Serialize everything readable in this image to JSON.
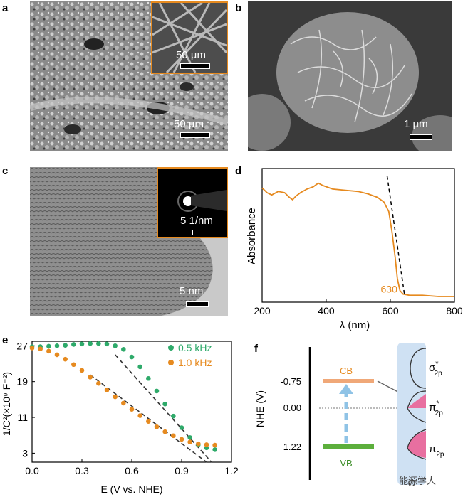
{
  "panels": {
    "a": {
      "label": "a",
      "scale": "50 µm",
      "inset_scale": "50 µm"
    },
    "b": {
      "label": "b",
      "scale": "1 µm"
    },
    "c": {
      "label": "c",
      "scale": "5 nm",
      "inset_scale": "5 1/nm"
    },
    "d": {
      "label": "d",
      "annotation": "630"
    },
    "e": {
      "label": "e"
    },
    "f": {
      "label": "f"
    }
  },
  "colors": {
    "orange": "#E68A1F",
    "green": "#2EAA6A",
    "cb": "#F0A878",
    "vb": "#5CAF3C",
    "arrow": "#8FC3E6",
    "band_bg": "#CFE1F3",
    "pink": "#E86FA0"
  },
  "chart_data": [
    {
      "type": "line",
      "panel": "d",
      "xlabel": "λ (nm)",
      "ylabel": "Absorbance",
      "xlim": [
        200,
        800
      ],
      "xticks": [
        "200",
        "400",
        "600",
        "800"
      ],
      "series": [
        {
          "x": [
            200,
            215,
            230,
            250,
            270,
            285,
            295,
            305,
            320,
            340,
            360,
            375,
            390,
            420,
            460,
            500,
            530,
            560,
            580,
            595,
            605,
            615,
            622,
            630,
            640,
            660,
            700,
            750,
            800
          ],
          "y": [
            0.92,
            0.88,
            0.86,
            0.89,
            0.88,
            0.84,
            0.82,
            0.85,
            0.88,
            0.91,
            0.93,
            0.96,
            0.94,
            0.91,
            0.9,
            0.89,
            0.87,
            0.84,
            0.8,
            0.72,
            0.55,
            0.33,
            0.15,
            0.05,
            0.02,
            0.01,
            0.01,
            0.0,
            0.0
          ]
        }
      ],
      "fit_line": {
        "x": [
          590,
          645
        ],
        "y": [
          1.02,
          0.0
        ]
      },
      "annotation": "630"
    },
    {
      "type": "scatter",
      "panel": "e",
      "xlabel": "E (V vs. NHE)",
      "ylabel": "1/C²(×10⁹ F⁻²)",
      "xlim": [
        0.0,
        1.2
      ],
      "ylim": [
        1,
        28
      ],
      "xticks": [
        "0.0",
        "0.3",
        "0.6",
        "0.9",
        "1.2"
      ],
      "yticks": [
        "3",
        "11",
        "19",
        "27"
      ],
      "series": [
        {
          "name": "0.5 kHz",
          "color": "#2EAA6A",
          "x": [
            0.0,
            0.05,
            0.1,
            0.15,
            0.2,
            0.25,
            0.3,
            0.35,
            0.4,
            0.45,
            0.5,
            0.55,
            0.6,
            0.65,
            0.7,
            0.75,
            0.8,
            0.85,
            0.9,
            0.95,
            1.0,
            1.05,
            1.1
          ],
          "y": [
            26.8,
            26.8,
            26.9,
            27.0,
            27.1,
            27.3,
            27.4,
            27.5,
            27.5,
            27.4,
            27.0,
            26.2,
            24.5,
            22.3,
            19.7,
            16.9,
            14.0,
            11.3,
            8.7,
            6.5,
            4.9,
            4.2,
            3.8
          ]
        },
        {
          "name": "1.0 kHz",
          "color": "#E68A1F",
          "x": [
            0.0,
            0.05,
            0.1,
            0.15,
            0.2,
            0.25,
            0.3,
            0.35,
            0.4,
            0.45,
            0.5,
            0.55,
            0.6,
            0.65,
            0.7,
            0.75,
            0.8,
            0.85,
            0.9,
            0.95,
            1.0,
            1.05,
            1.1
          ],
          "y": [
            26.5,
            26.3,
            25.8,
            25.0,
            24.0,
            22.8,
            21.5,
            20.0,
            18.6,
            17.1,
            15.6,
            14.2,
            12.8,
            11.4,
            10.1,
            8.9,
            7.8,
            6.9,
            6.1,
            5.5,
            5.1,
            4.9,
            4.8
          ]
        }
      ],
      "fit_lines": [
        {
          "x": [
            0.5,
            1.08
          ],
          "y": [
            25.0,
            1.0
          ]
        },
        {
          "x": [
            0.35,
            1.05
          ],
          "y": [
            20.5,
            1.0
          ]
        }
      ]
    }
  ],
  "panel_f": {
    "axis_label": "NHE (V)",
    "ticks": [
      "-0.75",
      "0.00",
      "1.22"
    ],
    "cb": "CB",
    "vb": "VB",
    "orbitals": [
      "σ*2p",
      "π*2p",
      "π2p"
    ],
    "sigma": {
      "main": "σ",
      "sup": "*",
      "sub": "2p"
    },
    "pi_star": {
      "main": "π",
      "sup": "*",
      "sub": "2p"
    },
    "pi": {
      "main": "π",
      "sub": "2p"
    },
    "bottom": "O",
    "watermark": "能源学人"
  }
}
